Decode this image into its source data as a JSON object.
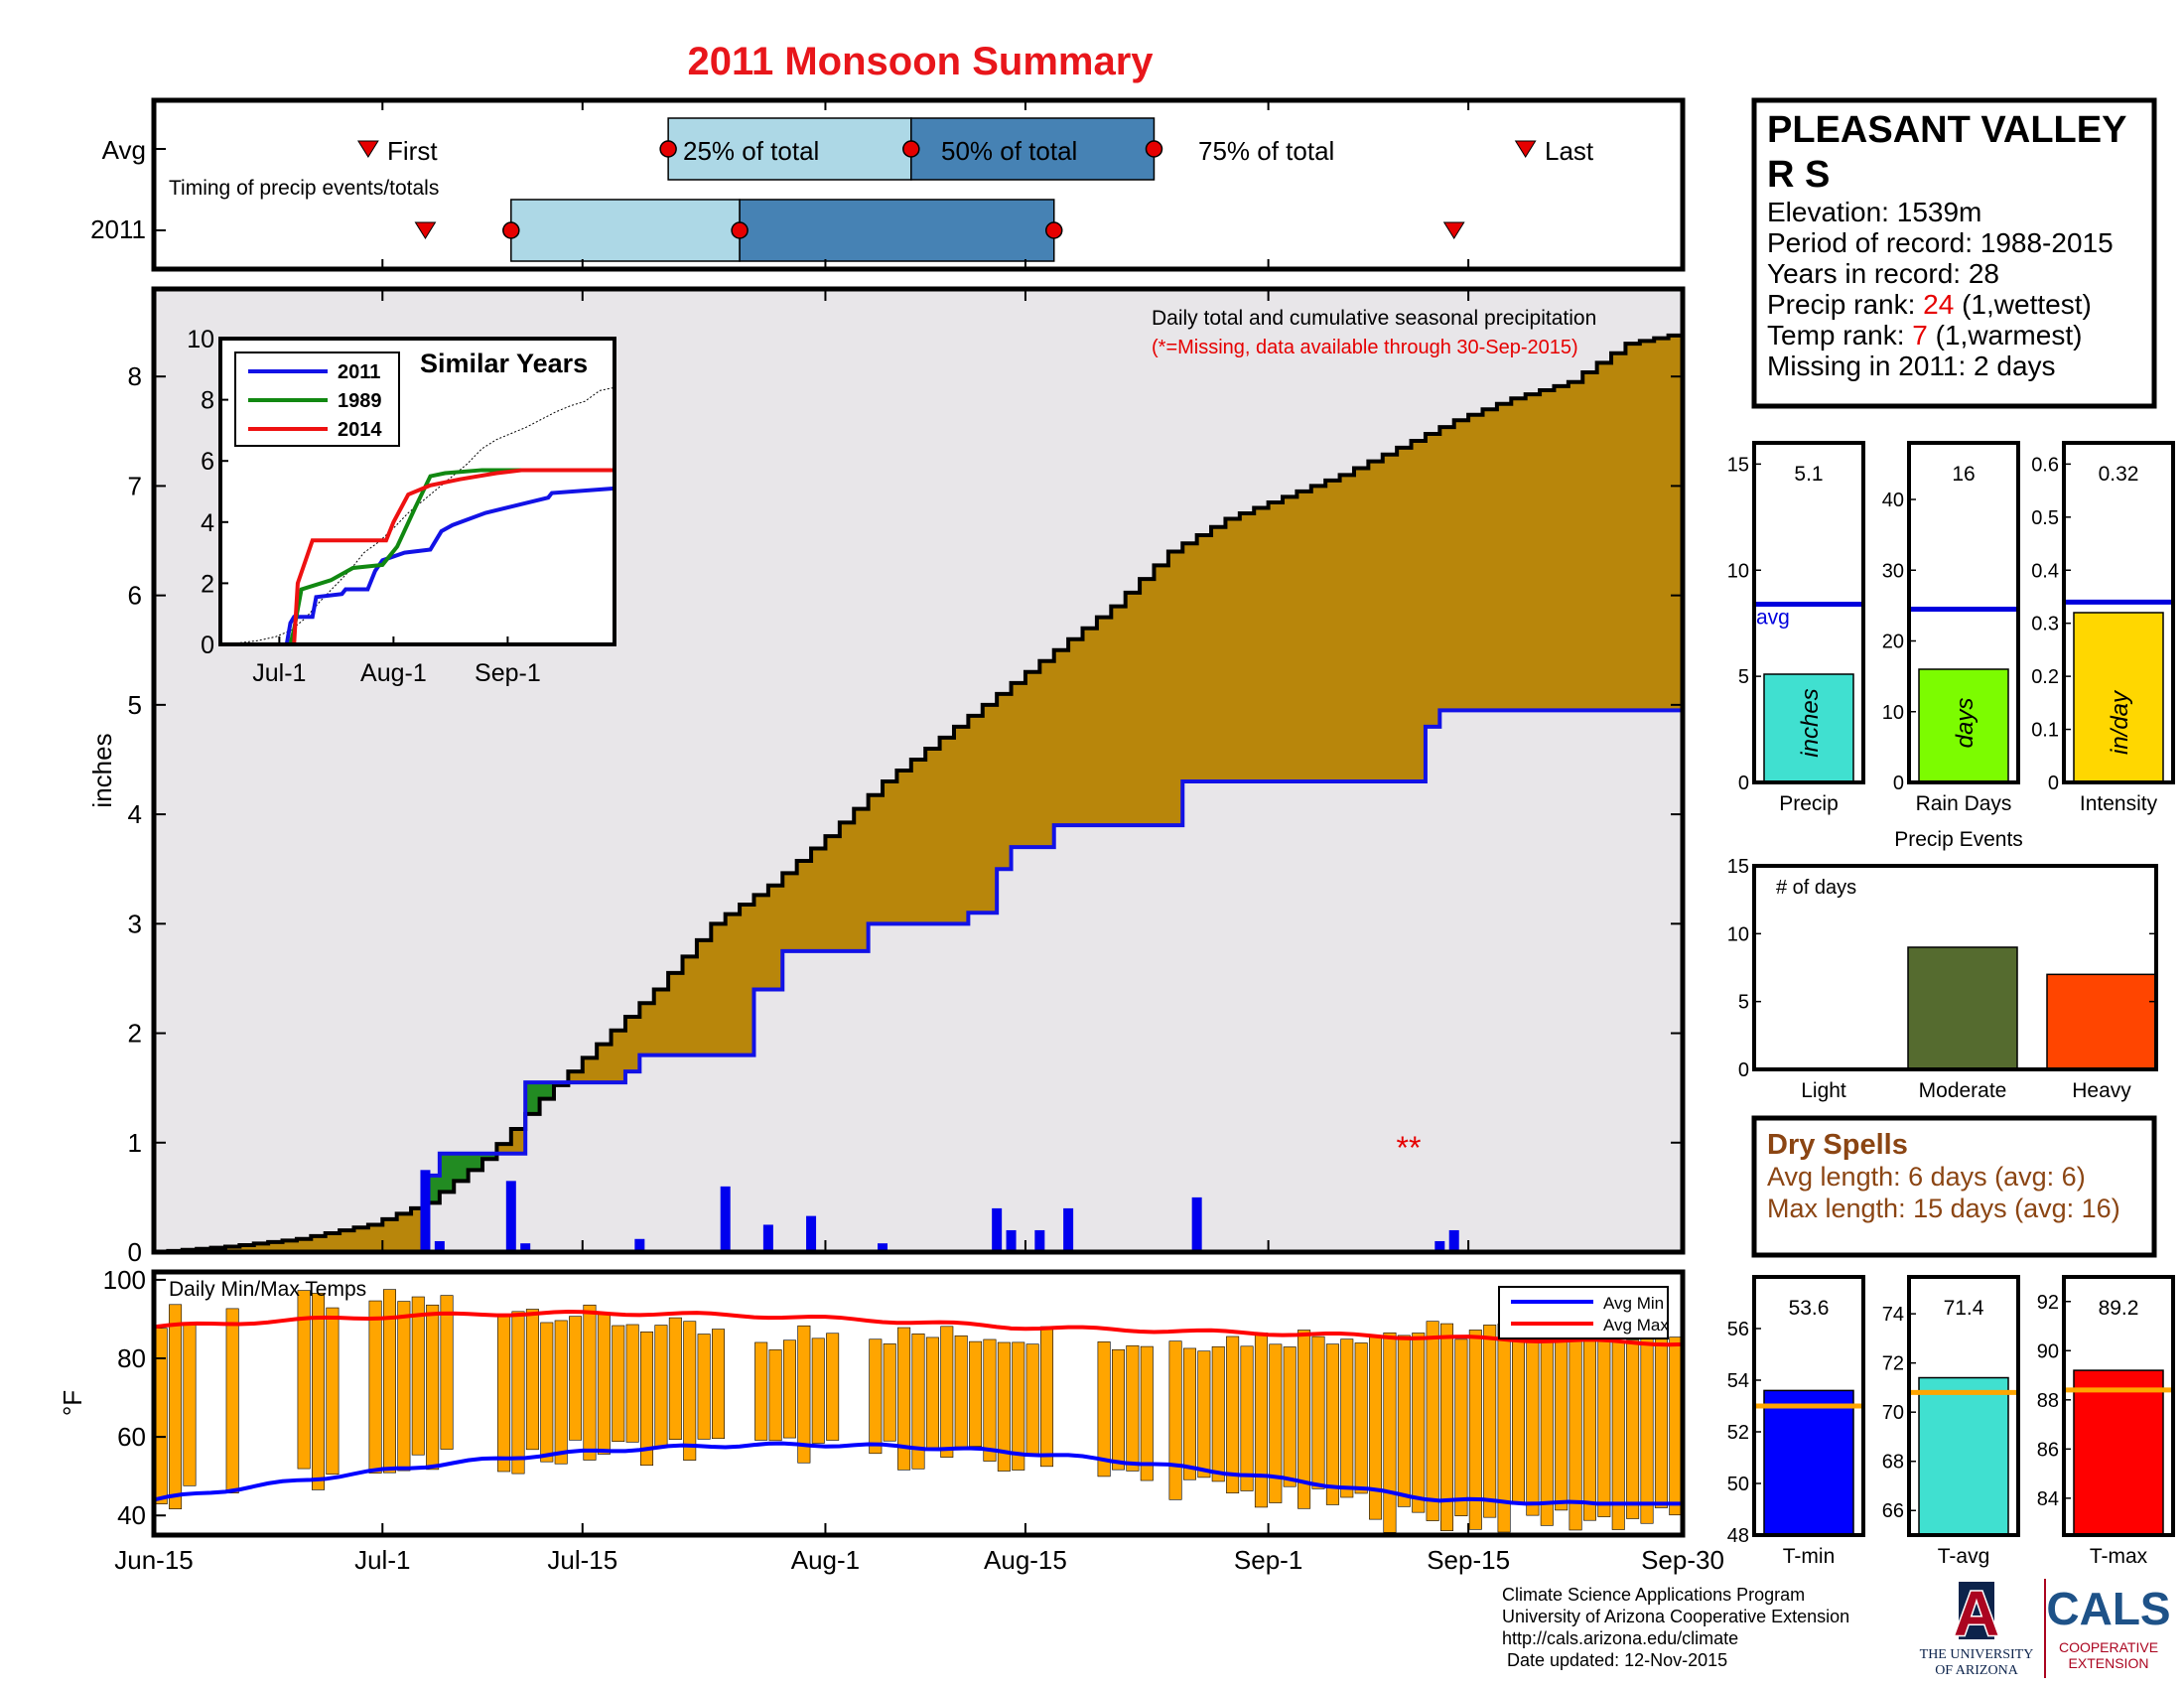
{
  "title": "2011 Monsoon Summary",
  "timing": {
    "row_avg_label": "Avg",
    "row_year_label": "2011",
    "subtitle": "Timing of precip events/totals",
    "first_label": "First",
    "last_label": "Last",
    "p25_label": "25% of total",
    "p50_label": "50% of total",
    "p75_label": "75% of total"
  },
  "station": {
    "name_line1": "PLEASANT VALLEY",
    "name_line2": "R S",
    "elevation": "Elevation: 1539m",
    "period": "Period of record: 1988-2015",
    "years": "Years in record: 28",
    "precip_rank_prefix": "Precip rank: ",
    "precip_rank_value": "24",
    "precip_rank_suffix": " (1,wettest)",
    "temp_rank_prefix": "Temp rank: ",
    "temp_rank_value": "7",
    "temp_rank_suffix": " (1,warmest)",
    "missing": "Missing in 2011: 2 days"
  },
  "main": {
    "note1": "Daily total and cumulative seasonal precipitation",
    "note2": "(*=Missing, data available through 30-Sep-2015)",
    "ylabel": "inches",
    "missing_marker": "**"
  },
  "inset": {
    "title": "Similar Years",
    "xticks": [
      "Jul-1",
      "Aug-1",
      "Sep-1"
    ]
  },
  "temps": {
    "label": "Daily Min/Max Temps",
    "ylabel": "°F",
    "legend_min": "Avg Min",
    "legend_max": "Avg Max"
  },
  "bar_panels": {
    "avg_label": "avg",
    "precip": {
      "value_label": "5.1",
      "unit": "inches",
      "xlabel": "Precip"
    },
    "raindays": {
      "value_label": "16",
      "unit": "days",
      "xlabel": "Rain Days"
    },
    "intensity": {
      "value_label": "0.32",
      "unit": "in/day",
      "xlabel": "Intensity"
    }
  },
  "events": {
    "title": "Precip Events",
    "ylabel": "# of days",
    "categories": [
      "Light",
      "Moderate",
      "Heavy"
    ]
  },
  "dry": {
    "title": "Dry Spells",
    "line1": "Avg length: 6 days (avg: 6)",
    "line2": "Max length: 15 days (avg: 16)"
  },
  "temp_panels": {
    "tmin": {
      "value_label": "53.6",
      "xlabel": "T-min"
    },
    "tavg": {
      "value_label": "71.4",
      "xlabel": "T-avg"
    },
    "tmax": {
      "value_label": "89.2",
      "xlabel": "T-max"
    }
  },
  "footer": {
    "line1": "Climate Science Applications Program",
    "line2": "University of Arizona Cooperative Extension",
    "line3": "http://cals.arizona.edu/climate",
    "line4": " Date updated: 12-Nov-2015"
  },
  "logos": {
    "ua_letter": "A",
    "ua_text1": "THE UNIVERSITY",
    "ua_text2": "OF ARIZONA",
    "cals": "CALS",
    "cals_sub1": "COOPERATIVE",
    "cals_sub2": "EXTENSION"
  },
  "colors": {
    "title": "#e8161b",
    "obs_line": "#1212e6",
    "avg_fill": "#b8860b",
    "above_fill": "#228b22",
    "below_fill": "#e8e6e9",
    "light_blue": "#add8e6",
    "steel_blue": "#4682b4",
    "marker_red": "#e60000",
    "temp_bar": "#ffa500",
    "avg_max_line": "#ff0000",
    "avg_min_line": "#0000ff",
    "precip_bar": "#40e0d0",
    "raindays_bar": "#7cfc00",
    "intensity_bar": "#ffd700",
    "moderate_bar": "#556b2f",
    "heavy_bar": "#ff4500",
    "tmin_bar": "#0000ff",
    "tavg_bar": "#40e0d0",
    "tmax_bar": "#ff0000",
    "avg_temp_line": "#ffa500",
    "dry_text": "#8b4513",
    "ua_blue": "#0c234b",
    "ua_red": "#ab0520",
    "cals_blue": "#1e5288"
  },
  "chart_data": [
    {
      "type": "line",
      "id": "timing",
      "x": [
        "Jun-15",
        "Jul-1",
        "Jul-15",
        "Aug-1",
        "Aug-15",
        "Sep-1",
        "Sep-15",
        "Sep-30"
      ],
      "series": [
        {
          "name": "Avg",
          "first": "Jun-30",
          "p25": "Jul-21",
          "p50": "Aug-7",
          "p75": "Aug-24",
          "last": "Sep-19"
        },
        {
          "name": "2011",
          "first": "Jul-4",
          "p25": "Jul-10",
          "p50": "Jul-26",
          "p75": "Aug-17",
          "last": "Sep-14"
        }
      ]
    },
    {
      "type": "area",
      "id": "seasonal_precip",
      "xlabel": "",
      "ylabel": "inches",
      "xlim": [
        "Jun-15",
        "Sep-30"
      ],
      "ylim": [
        0,
        8.8
      ],
      "xticks": [
        "Jun-15",
        "Jul-1",
        "Jul-15",
        "Aug-1",
        "Aug-15",
        "Sep-1",
        "Sep-15",
        "Sep-30"
      ],
      "yticks": [
        0,
        1,
        2,
        3,
        4,
        5,
        6,
        7,
        8
      ],
      "avg_cumulative": {
        "x": [
          "Jun-15",
          "Jun-20",
          "Jun-25",
          "Jun-30",
          "Jul-4",
          "Jul-8",
          "Jul-12",
          "Jul-16",
          "Jul-20",
          "Jul-24",
          "Jul-28",
          "Aug-1",
          "Aug-5",
          "Aug-9",
          "Aug-13",
          "Aug-17",
          "Aug-21",
          "Aug-25",
          "Aug-29",
          "Sep-2",
          "Sep-6",
          "Sep-10",
          "Sep-14",
          "Sep-18",
          "Sep-22",
          "Sep-26",
          "Sep-30"
        ],
        "y": [
          0,
          0.05,
          0.12,
          0.25,
          0.45,
          0.85,
          1.4,
          1.9,
          2.4,
          3.0,
          3.35,
          3.8,
          4.3,
          4.7,
          5.1,
          5.5,
          5.9,
          6.4,
          6.7,
          6.9,
          7.1,
          7.35,
          7.6,
          7.8,
          7.95,
          8.3,
          8.4
        ]
      },
      "series": [
        {
          "name": "2011",
          "x": [
            "Jul-4",
            "Jul-5",
            "Jul-10",
            "Jul-11",
            "Jul-18",
            "Jul-19",
            "Jul-25",
            "Jul-27",
            "Jul-29",
            "Aug-4",
            "Aug-11",
            "Aug-13",
            "Aug-14",
            "Aug-17",
            "Aug-26",
            "Sep-12",
            "Sep-13",
            "Sep-30"
          ],
          "y": [
            0.7,
            0.9,
            0.9,
            1.55,
            1.65,
            1.8,
            1.8,
            2.4,
            2.75,
            3.0,
            3.1,
            3.5,
            3.7,
            3.9,
            4.3,
            4.8,
            4.95,
            5.1
          ]
        }
      ],
      "daily_bars": {
        "x": [
          "Jul-4",
          "Jul-5",
          "Jul-10",
          "Jul-11",
          "Jul-19",
          "Jul-25",
          "Jul-28",
          "Jul-31",
          "Aug-5",
          "Aug-13",
          "Aug-14",
          "Aug-16",
          "Aug-18",
          "Aug-27",
          "Sep-13",
          "Sep-14"
        ],
        "values": [
          0.75,
          0.1,
          0.65,
          0.08,
          0.12,
          0.6,
          0.25,
          0.33,
          0.08,
          0.4,
          0.2,
          0.2,
          0.4,
          0.5,
          0.1,
          0.2
        ]
      },
      "missing_days": [
        "Sep-10",
        "Sep-11"
      ]
    },
    {
      "type": "line",
      "id": "similar_years",
      "title": "Similar Years",
      "xticks": [
        "Jul-1",
        "Aug-1",
        "Sep-1"
      ],
      "ylim": [
        0,
        10
      ],
      "yticks": [
        0,
        2,
        4,
        6,
        8,
        10
      ],
      "series": [
        {
          "name": "2011",
          "y_end": 5.1
        },
        {
          "name": "1989",
          "y_end": 5.7
        },
        {
          "name": "2014",
          "y_end": 5.7
        }
      ],
      "avg_end": 8.4
    },
    {
      "type": "bar",
      "id": "daily_temps",
      "title": "Daily Min/Max Temps",
      "ylabel": "°F",
      "ylim": [
        35,
        102
      ],
      "yticks": [
        40,
        60,
        80,
        100
      ],
      "xlim": [
        "Jun-15",
        "Sep-30"
      ],
      "avg_max_range": [
        87,
        92
      ],
      "avg_min_range": [
        43,
        58
      ],
      "note": "daily bars span min to max temperature"
    },
    {
      "type": "bar",
      "id": "precip_totals",
      "panels": [
        {
          "name": "Precip",
          "value": 5.1,
          "avg": 8.4,
          "ylim": [
            0,
            16
          ],
          "yticks": [
            0,
            5,
            10,
            15
          ]
        },
        {
          "name": "Rain Days",
          "value": 16,
          "avg": 24.5,
          "ylim": [
            0,
            48
          ],
          "yticks": [
            0,
            10,
            20,
            30,
            40
          ]
        },
        {
          "name": "Intensity",
          "value": 0.32,
          "avg": 0.34,
          "ylim": [
            0,
            0.64
          ],
          "yticks": [
            0,
            0.1,
            0.2,
            0.3,
            0.4,
            0.5,
            0.6
          ]
        }
      ]
    },
    {
      "type": "bar",
      "id": "precip_events",
      "title": "Precip Events",
      "ylabel": "# of days",
      "categories": [
        "Light",
        "Moderate",
        "Heavy"
      ],
      "values": [
        0,
        9,
        7
      ],
      "ylim": [
        0,
        15
      ],
      "yticks": [
        0,
        5,
        10,
        15
      ]
    },
    {
      "type": "bar",
      "id": "temp_summary",
      "panels": [
        {
          "name": "T-min",
          "value": 53.6,
          "avg": 53.0,
          "ylim": [
            48,
            58
          ],
          "yticks": [
            48,
            50,
            52,
            54,
            56
          ]
        },
        {
          "name": "T-avg",
          "value": 71.4,
          "avg": 70.8,
          "ylim": [
            65,
            75.5
          ],
          "yticks": [
            66,
            68,
            70,
            72,
            74
          ]
        },
        {
          "name": "T-max",
          "value": 89.2,
          "avg": 88.4,
          "ylim": [
            82.5,
            93
          ],
          "yticks": [
            84,
            86,
            88,
            90,
            92
          ]
        }
      ]
    }
  ]
}
